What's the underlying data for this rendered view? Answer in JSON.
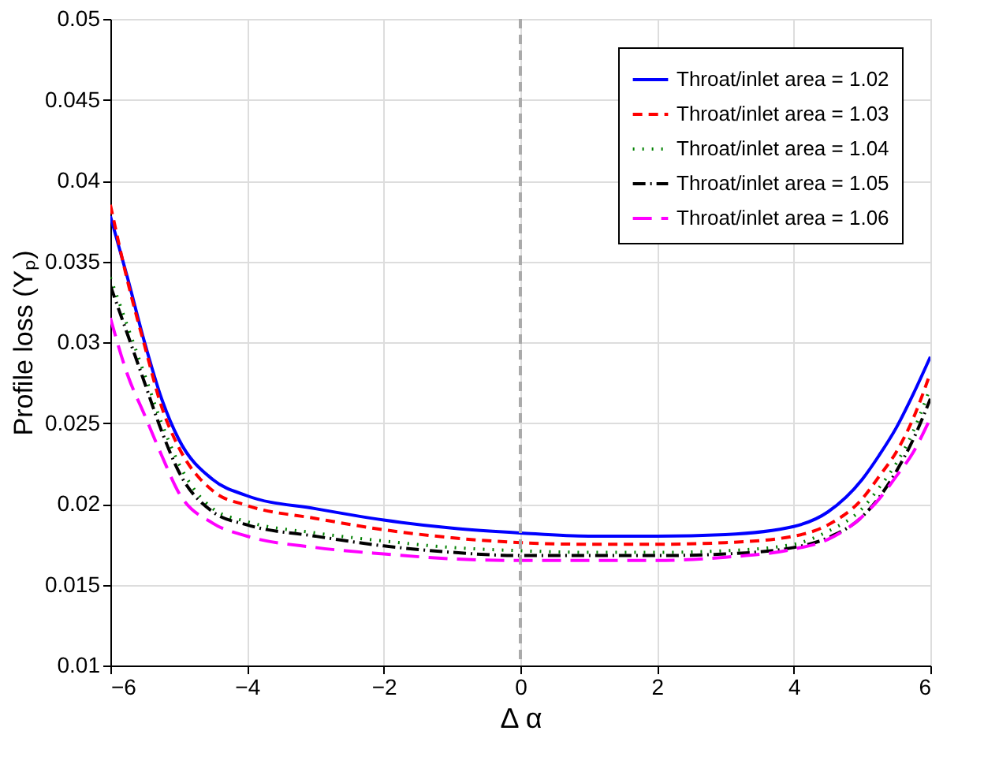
{
  "chart_data": {
    "type": "line",
    "xlabel": "Δ α",
    "ylabel": "Profile loss (Yₚ)",
    "x": [
      -6,
      -5.75,
      -5.5,
      -5.25,
      -5,
      -4.5,
      -4,
      -3,
      -2,
      -1,
      0,
      1,
      2,
      3,
      4,
      4.5,
      5,
      5.25,
      5.5,
      5.75,
      6
    ],
    "series": [
      {
        "name": "Throat/inlet area = 1.02",
        "color": "#0000ff",
        "line_style": "solid",
        "values": [
          0.0378,
          0.034,
          0.03,
          0.0265,
          0.024,
          0.0215,
          0.0205,
          0.0197,
          0.019,
          0.0185,
          0.0182,
          0.018,
          0.018,
          0.0181,
          0.0186,
          0.0195,
          0.0215,
          0.023,
          0.0247,
          0.0268,
          0.0291
        ]
      },
      {
        "name": "Throat/inlet area = 1.03",
        "color": "#ff0000",
        "line_style": "dashed",
        "values": [
          0.0385,
          0.0338,
          0.0298,
          0.026,
          0.0235,
          0.0208,
          0.0199,
          0.0191,
          0.0184,
          0.0179,
          0.0176,
          0.0175,
          0.0175,
          0.0176,
          0.018,
          0.0187,
          0.0203,
          0.0217,
          0.0232,
          0.0253,
          0.0281
        ]
      },
      {
        "name": "Throat/inlet area = 1.04",
        "color": "#008000",
        "line_style": "dotted",
        "values": [
          0.034,
          0.031,
          0.028,
          0.025,
          0.0225,
          0.0197,
          0.0189,
          0.0182,
          0.0177,
          0.0173,
          0.0171,
          0.017,
          0.017,
          0.0171,
          0.0175,
          0.0183,
          0.0197,
          0.021,
          0.0225,
          0.0245,
          0.0272
        ]
      },
      {
        "name": "Throat/inlet area = 1.05",
        "color": "#000000",
        "line_style": "dashdot",
        "values": [
          0.0335,
          0.0305,
          0.0275,
          0.0245,
          0.022,
          0.0195,
          0.0187,
          0.018,
          0.0174,
          0.017,
          0.0168,
          0.0168,
          0.0168,
          0.0169,
          0.0173,
          0.0179,
          0.0192,
          0.0204,
          0.022,
          0.024,
          0.0265
        ]
      },
      {
        "name": "Throat/inlet area = 1.06",
        "color": "#ff00ff",
        "line_style": "longdashed",
        "values": [
          0.0315,
          0.028,
          0.0255,
          0.023,
          0.0207,
          0.0188,
          0.018,
          0.0173,
          0.0169,
          0.0166,
          0.0165,
          0.0165,
          0.0165,
          0.0167,
          0.0172,
          0.0178,
          0.0192,
          0.0203,
          0.0217,
          0.0232,
          0.0253
        ]
      }
    ],
    "xlim": [
      -6,
      6
    ],
    "xticks": [
      -6,
      -4,
      -2,
      0,
      2,
      4,
      6
    ],
    "ylim": [
      0.01,
      0.05
    ],
    "yticks": [
      0.01,
      0.015,
      0.02,
      0.025,
      0.03,
      0.035,
      0.04,
      0.045,
      0.05
    ],
    "ref_lines": [
      {
        "axis": "x",
        "value": 0,
        "color": "#aaaaaa",
        "line_style": "dashed"
      }
    ],
    "grid": true,
    "legend": "top right"
  }
}
